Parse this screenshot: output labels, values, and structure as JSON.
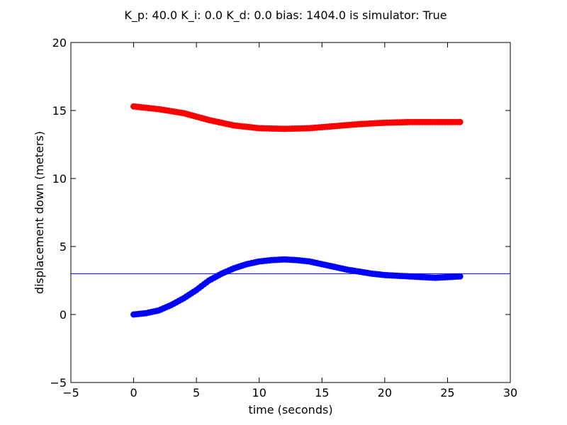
{
  "chart_data": {
    "type": "scatter",
    "title": "K_p: 40.0 K_i: 0.0 K_d: 0.0 bias: 1404.0 is simulator: True",
    "xlabel": "time (seconds)",
    "ylabel": "displacement down (meters)",
    "xlim": [
      -5,
      30
    ],
    "ylim": [
      -5,
      20
    ],
    "xticks": [
      -5,
      0,
      5,
      10,
      15,
      20,
      25,
      30
    ],
    "yticks": [
      -5,
      0,
      5,
      10,
      15,
      20
    ],
    "xtick_labels": [
      "−5",
      "0",
      "5",
      "10",
      "15",
      "20",
      "25",
      "30"
    ],
    "ytick_labels": [
      "−5",
      "0",
      "5",
      "10",
      "15",
      "20"
    ],
    "grid": false,
    "reference_line": {
      "y": 3.0,
      "color": "#0000ff"
    },
    "series": [
      {
        "name": "upper",
        "color": "#ff0000",
        "keyframes": [
          [
            0,
            15.3
          ],
          [
            2,
            15.1
          ],
          [
            4,
            14.8
          ],
          [
            6,
            14.3
          ],
          [
            8,
            13.9
          ],
          [
            10,
            13.7
          ],
          [
            12,
            13.65
          ],
          [
            14,
            13.7
          ],
          [
            16,
            13.85
          ],
          [
            18,
            14.0
          ],
          [
            20,
            14.1
          ],
          [
            22,
            14.15
          ],
          [
            24,
            14.15
          ],
          [
            26,
            14.15
          ]
        ]
      },
      {
        "name": "lower",
        "color": "#0000ff",
        "keyframes": [
          [
            0,
            0.0
          ],
          [
            1,
            0.1
          ],
          [
            2,
            0.3
          ],
          [
            3,
            0.7
          ],
          [
            4,
            1.2
          ],
          [
            5,
            1.8
          ],
          [
            6,
            2.5
          ],
          [
            7,
            3.0
          ],
          [
            8,
            3.4
          ],
          [
            9,
            3.7
          ],
          [
            10,
            3.9
          ],
          [
            11,
            4.0
          ],
          [
            12,
            4.05
          ],
          [
            13,
            4.0
          ],
          [
            14,
            3.9
          ],
          [
            15,
            3.7
          ],
          [
            16,
            3.5
          ],
          [
            17,
            3.3
          ],
          [
            18,
            3.15
          ],
          [
            19,
            3.0
          ],
          [
            20,
            2.9
          ],
          [
            21,
            2.85
          ],
          [
            22,
            2.8
          ],
          [
            23,
            2.75
          ],
          [
            24,
            2.7
          ],
          [
            25,
            2.75
          ],
          [
            26,
            2.8
          ]
        ]
      }
    ]
  }
}
